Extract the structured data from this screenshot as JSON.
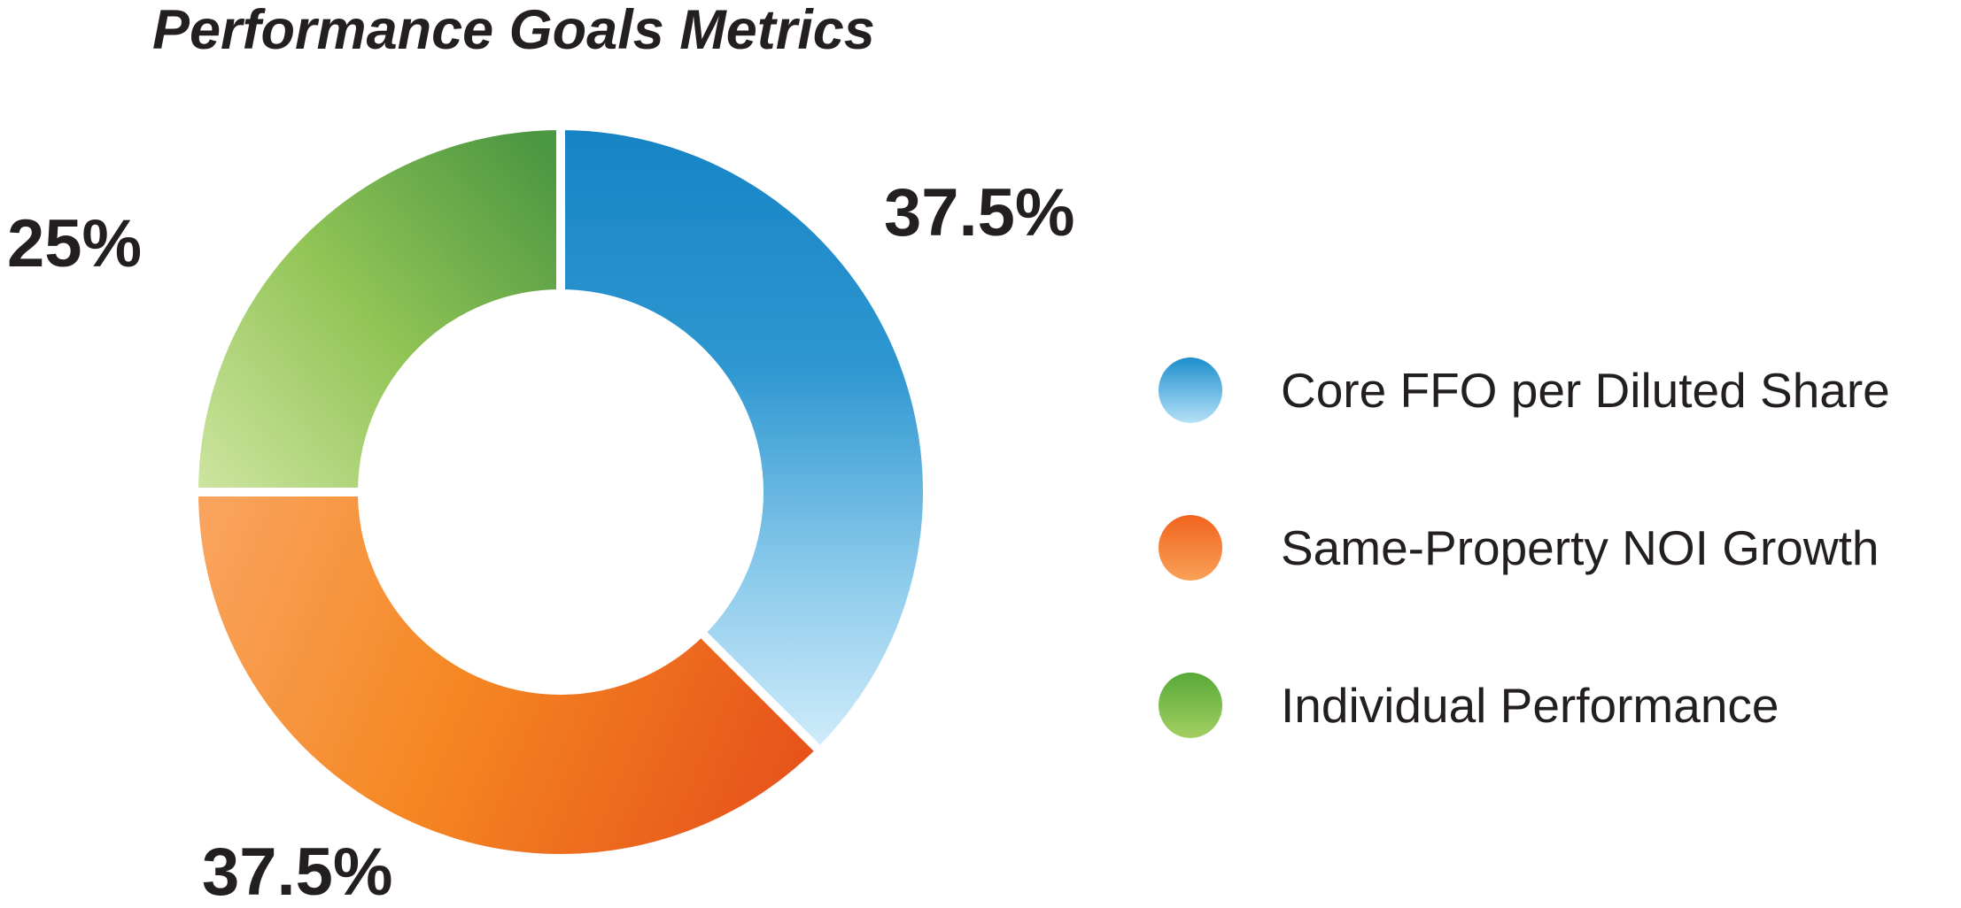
{
  "title": "Performance Goals Metrics",
  "chart_data": {
    "type": "pie",
    "variant": "donut",
    "title": "Performance Goals Metrics",
    "units": "percent",
    "start_angle_deg": 0,
    "direction": "clockwise",
    "inner_radius_ratio": 0.54,
    "legend_position": "right",
    "labels_outside": true,
    "total": 100,
    "slices": [
      {
        "label": "Core FFO per Diluted Share",
        "value": 37.5,
        "display": "37.5%",
        "base_color": "#1787C8",
        "gradient": [
          {
            "offset": 0,
            "color": "#1583C4"
          },
          {
            "offset": 0.38,
            "color": "#2E97D1"
          },
          {
            "offset": 0.72,
            "color": "#8FCCEC"
          },
          {
            "offset": 1,
            "color": "#D4EEFB"
          }
        ],
        "dot": [
          "#1E8FCD",
          "#B5E1F7"
        ]
      },
      {
        "label": "Same-Property NOI Growth",
        "value": 37.5,
        "display": "37.5%",
        "base_color": "#F58122",
        "gradient": [
          {
            "offset": 0,
            "color": "#F9A35C"
          },
          {
            "offset": 0.45,
            "color": "#F58722"
          },
          {
            "offset": 1,
            "color": "#E6511A"
          }
        ],
        "dot": [
          "#F1641F",
          "#F9A156"
        ]
      },
      {
        "label": "Individual Performance",
        "value": 25,
        "display": "25%",
        "base_color": "#8FC355",
        "gradient": [
          {
            "offset": 0,
            "color": "#CDE5A0"
          },
          {
            "offset": 0.5,
            "color": "#92C456"
          },
          {
            "offset": 1,
            "color": "#4C9742"
          }
        ],
        "dot": [
          "#57AA39",
          "#A4CF62"
        ]
      }
    ]
  }
}
